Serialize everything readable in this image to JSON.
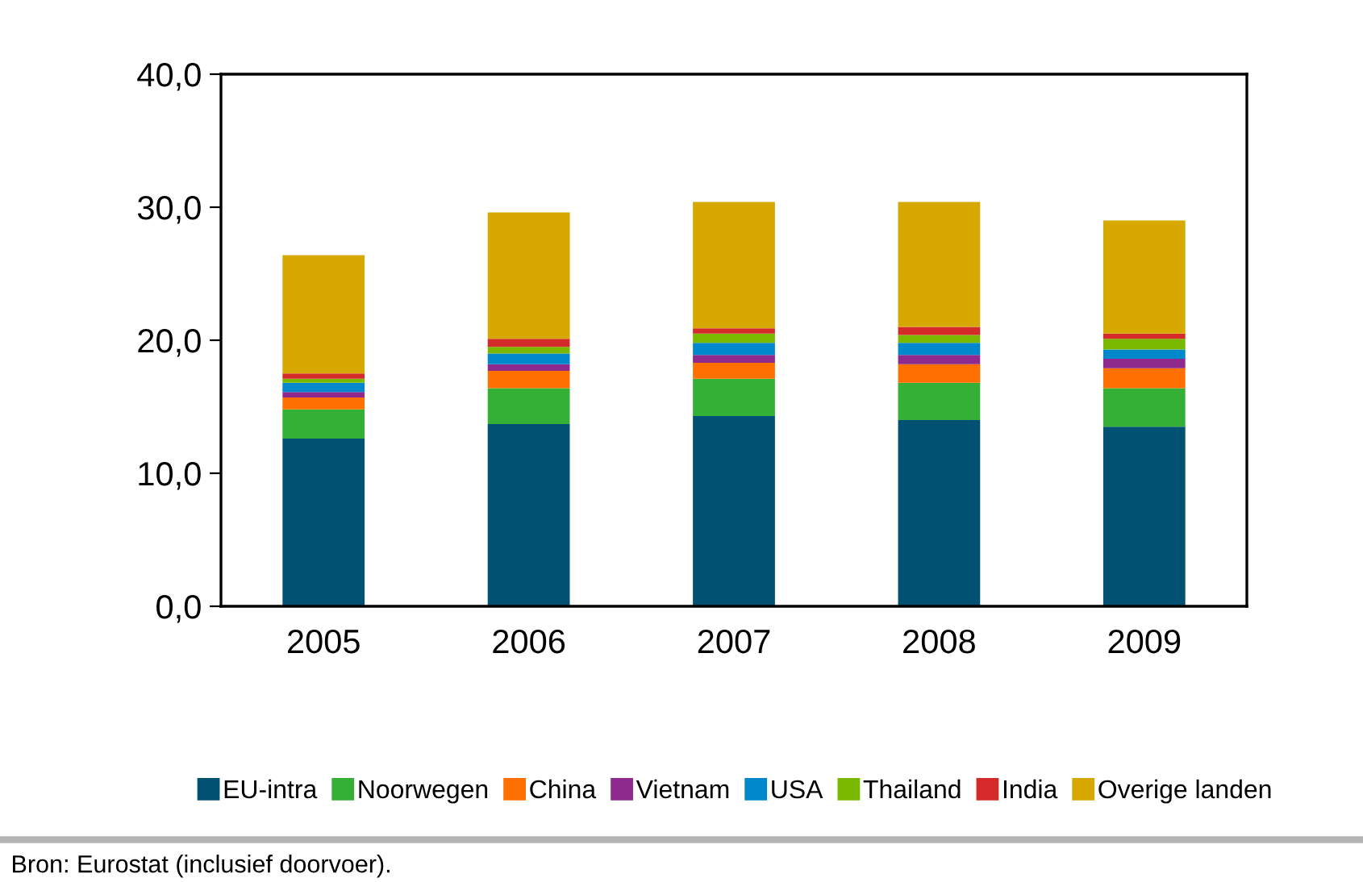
{
  "chart_data": {
    "type": "bar",
    "stacked": true,
    "categories": [
      "2005",
      "2006",
      "2007",
      "2008",
      "2009"
    ],
    "series": [
      {
        "name": "EU-intra",
        "color": "#005172",
        "values": [
          12.6,
          13.7,
          14.3,
          14.0,
          13.5
        ]
      },
      {
        "name": "Noorwegen",
        "color": "#33b035",
        "values": [
          2.2,
          2.7,
          2.8,
          2.8,
          2.9
        ]
      },
      {
        "name": "China",
        "color": "#ff7000",
        "values": [
          0.9,
          1.3,
          1.2,
          1.4,
          1.5
        ]
      },
      {
        "name": "Vietnam",
        "color": "#8e2a8e",
        "values": [
          0.4,
          0.5,
          0.6,
          0.7,
          0.7
        ]
      },
      {
        "name": "USA",
        "color": "#0088cc",
        "values": [
          0.7,
          0.8,
          0.9,
          0.9,
          0.7
        ]
      },
      {
        "name": "Thailand",
        "color": "#7ab800",
        "values": [
          0.3,
          0.5,
          0.7,
          0.6,
          0.8
        ]
      },
      {
        "name": "India",
        "color": "#d42a2a",
        "values": [
          0.4,
          0.6,
          0.4,
          0.6,
          0.4
        ]
      },
      {
        "name": "Overige landen",
        "color": "#d6a800",
        "values": [
          8.9,
          9.5,
          9.5,
          9.4,
          8.5
        ]
      }
    ],
    "ylim": [
      0,
      40
    ],
    "yticks": [
      {
        "value": 0,
        "label": "0,0"
      },
      {
        "value": 10,
        "label": "10,0"
      },
      {
        "value": 20,
        "label": "20,0"
      },
      {
        "value": 30,
        "label": "30,0"
      },
      {
        "value": 40,
        "label": "40,0"
      }
    ],
    "grid": false,
    "legend": "bottom",
    "marker": "square",
    "annotations": [
      "Bron: Eurostat (inclusief doorvoer)."
    ]
  }
}
